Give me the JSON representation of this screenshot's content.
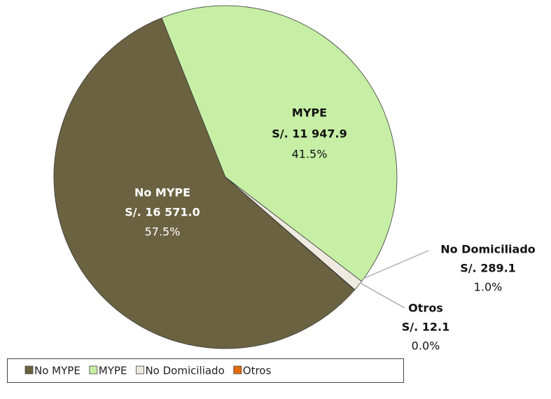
{
  "chart_data": {
    "type": "pie",
    "categories": [
      "No MYPE",
      "MYPE",
      "No Domiciliado",
      "Otros"
    ],
    "values": [
      16571.0,
      11947.9,
      289.1,
      12.1
    ],
    "value_labels": [
      "S/. 16 571.0",
      "S/. 11 947.9",
      "S/. 289.1",
      "S/. 12.1"
    ],
    "percentages": [
      57.5,
      41.5,
      1.0,
      0.0
    ],
    "percentage_labels": [
      "57.5%",
      "41.5%",
      "1.0%",
      "0.0%"
    ],
    "colors": [
      "#6b6241",
      "#c6efa5",
      "#efeadf",
      "#e36c0a"
    ],
    "legend": "bottom"
  }
}
